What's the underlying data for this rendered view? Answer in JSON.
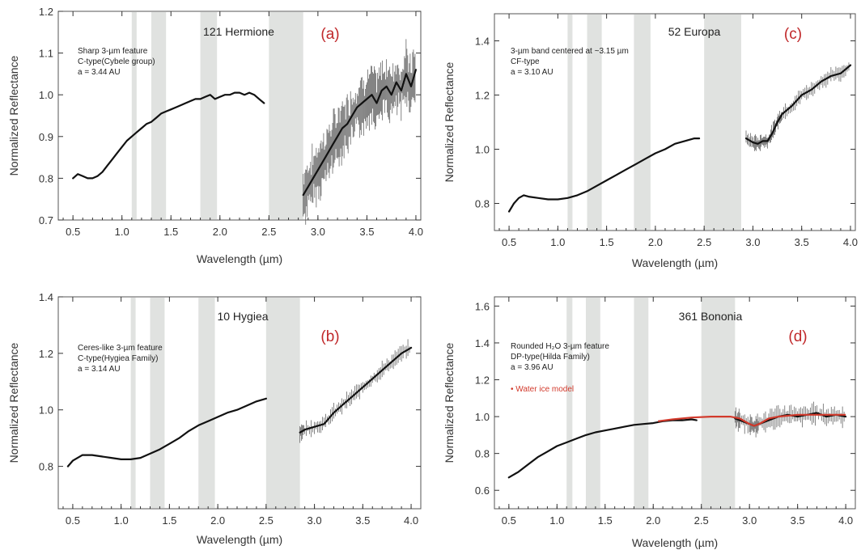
{
  "chart_data": [
    {
      "id": "a",
      "type": "scatter",
      "panel_label": "(a)",
      "object": "121 Hermione",
      "annotations": [
        "Sharp 3-µm feature",
        "C-type(Cybele group)",
        "a = 3.44 AU"
      ],
      "xlabel": "Wavelength (µm)",
      "ylabel": "Normalized Reflectance",
      "xlim": [
        0.35,
        4.05
      ],
      "ylim": [
        0.7,
        1.2
      ],
      "xticks": [
        "0.5",
        "1.0",
        "1.5",
        "2.0",
        "2.5",
        "3.0",
        "3.5",
        "4.0"
      ],
      "yticks": [
        "0.7",
        "0.8",
        "0.9",
        "1.0",
        "1.1",
        "1.2"
      ],
      "ytick_values": [
        0.7,
        0.8,
        0.9,
        1.0,
        1.1,
        1.2
      ],
      "bands": [
        [
          1.1,
          1.15
        ],
        [
          1.3,
          1.45
        ],
        [
          1.8,
          1.97
        ],
        [
          2.5,
          2.85
        ]
      ],
      "series": [
        {
          "x": [
            0.5,
            0.55,
            0.6,
            0.65,
            0.7,
            0.75,
            0.8,
            0.85,
            0.9,
            0.95,
            1.0,
            1.05,
            1.1,
            1.15,
            1.2,
            1.25,
            1.3,
            1.35,
            1.4,
            1.45,
            1.5,
            1.55,
            1.6,
            1.65,
            1.7,
            1.75,
            1.8,
            1.85,
            1.9,
            1.95,
            2.0,
            2.05,
            2.1,
            2.15,
            2.2,
            2.25,
            2.3,
            2.35,
            2.4,
            2.45
          ],
          "y": [
            0.8,
            0.81,
            0.805,
            0.8,
            0.8,
            0.805,
            0.815,
            0.83,
            0.845,
            0.86,
            0.875,
            0.89,
            0.9,
            0.91,
            0.92,
            0.93,
            0.935,
            0.945,
            0.955,
            0.96,
            0.965,
            0.97,
            0.975,
            0.98,
            0.985,
            0.99,
            0.99,
            0.995,
            1.0,
            0.99,
            0.995,
            1.0,
            1.0,
            1.005,
            1.005,
            1.0,
            1.005,
            1.0,
            0.99,
            0.98
          ]
        },
        {
          "x": [
            2.85,
            2.9,
            2.95,
            3.0,
            3.05,
            3.1,
            3.15,
            3.2,
            3.25,
            3.3,
            3.35,
            3.4,
            3.45,
            3.5,
            3.55,
            3.6,
            3.65,
            3.7,
            3.75,
            3.8,
            3.85,
            3.9,
            3.95,
            4.0
          ],
          "y": [
            0.76,
            0.78,
            0.8,
            0.82,
            0.84,
            0.86,
            0.88,
            0.9,
            0.92,
            0.93,
            0.95,
            0.97,
            0.98,
            0.99,
            1.0,
            0.98,
            1.01,
            1.02,
            1.0,
            1.03,
            1.01,
            1.05,
            1.02,
            1.06
          ]
        }
      ]
    },
    {
      "id": "c",
      "type": "scatter",
      "panel_label": "(c)",
      "object": "52 Europa",
      "annotations": [
        "3-µm band centered at ~3.15 µm",
        "CF-type",
        "a = 3.10 AU"
      ],
      "xlabel": "Wavelength (µm)",
      "ylabel": "Normalized Reflectance",
      "xlim": [
        0.35,
        4.05
      ],
      "ylim": [
        0.7,
        1.5
      ],
      "xticks": [
        "0.5",
        "1.0",
        "1.5",
        "2.0",
        "2.5",
        "3.0",
        "3.5",
        "4.0"
      ],
      "yticks": [
        "0.8",
        "1.0",
        "1.2",
        "1.4"
      ],
      "ytick_values": [
        0.8,
        1.0,
        1.2,
        1.4
      ],
      "bands": [
        [
          1.1,
          1.15
        ],
        [
          1.3,
          1.45
        ],
        [
          1.78,
          1.95
        ],
        [
          2.5,
          2.88
        ]
      ],
      "series": [
        {
          "x": [
            0.5,
            0.55,
            0.6,
            0.65,
            0.7,
            0.8,
            0.9,
            1.0,
            1.1,
            1.2,
            1.3,
            1.4,
            1.5,
            1.6,
            1.7,
            1.8,
            1.9,
            2.0,
            2.1,
            2.2,
            2.3,
            2.4,
            2.45
          ],
          "y": [
            0.77,
            0.8,
            0.82,
            0.83,
            0.825,
            0.82,
            0.815,
            0.815,
            0.82,
            0.83,
            0.845,
            0.865,
            0.885,
            0.905,
            0.925,
            0.945,
            0.965,
            0.985,
            1.0,
            1.02,
            1.03,
            1.04,
            1.04
          ]
        },
        {
          "x": [
            2.93,
            3.0,
            3.05,
            3.1,
            3.15,
            3.2,
            3.25,
            3.3,
            3.4,
            3.5,
            3.6,
            3.7,
            3.8,
            3.9,
            4.0
          ],
          "y": [
            1.04,
            1.025,
            1.02,
            1.03,
            1.03,
            1.06,
            1.1,
            1.13,
            1.16,
            1.2,
            1.22,
            1.25,
            1.27,
            1.28,
            1.31
          ]
        }
      ]
    },
    {
      "id": "b",
      "type": "scatter",
      "panel_label": "(b)",
      "object": "10 Hygiea",
      "annotations": [
        "Ceres-like  3-µm feature",
        "C-type(Hygiea Family)",
        "a = 3.14 AU"
      ],
      "xlabel": "Wavelength (µm)",
      "ylabel": "Normalized Reflectance",
      "xlim": [
        0.35,
        4.1
      ],
      "ylim": [
        0.65,
        1.4
      ],
      "xticks": [
        "0.5",
        "1.0",
        "1.5",
        "2.0",
        "2.5",
        "3.0",
        "3.5",
        "4.0"
      ],
      "yticks": [
        "0.8",
        "1.0",
        "1.2",
        "1.4"
      ],
      "ytick_values": [
        0.8,
        1.0,
        1.2,
        1.4
      ],
      "bands": [
        [
          1.1,
          1.15
        ],
        [
          1.3,
          1.45
        ],
        [
          1.8,
          1.97
        ],
        [
          2.5,
          2.85
        ]
      ],
      "series": [
        {
          "x": [
            0.45,
            0.5,
            0.6,
            0.7,
            0.8,
            0.9,
            1.0,
            1.1,
            1.2,
            1.3,
            1.4,
            1.5,
            1.6,
            1.7,
            1.8,
            1.9,
            2.0,
            2.1,
            2.2,
            2.3,
            2.4,
            2.5
          ],
          "y": [
            0.8,
            0.82,
            0.84,
            0.84,
            0.835,
            0.83,
            0.825,
            0.825,
            0.83,
            0.845,
            0.86,
            0.88,
            0.9,
            0.925,
            0.945,
            0.96,
            0.975,
            0.99,
            1.0,
            1.015,
            1.03,
            1.04
          ]
        },
        {
          "x": [
            2.85,
            2.9,
            3.0,
            3.1,
            3.2,
            3.3,
            3.4,
            3.5,
            3.6,
            3.7,
            3.8,
            3.9,
            4.0
          ],
          "y": [
            0.92,
            0.93,
            0.94,
            0.95,
            0.99,
            1.02,
            1.05,
            1.08,
            1.11,
            1.14,
            1.17,
            1.2,
            1.22
          ]
        }
      ]
    },
    {
      "id": "d",
      "type": "scatter",
      "panel_label": "(d)",
      "object": "361 Bononia",
      "annotations": [
        "Rounded H₂O 3-µm feature",
        "DP-type(Hilda Family)",
        "a = 3.96 AU"
      ],
      "legend": "• Water ice model",
      "xlabel": "Wavelength (µm)",
      "ylabel": "Normalized Reflectance",
      "xlim": [
        0.35,
        4.1
      ],
      "ylim": [
        0.5,
        1.65
      ],
      "xticks": [
        "0.5",
        "1.0",
        "1.5",
        "2.0",
        "2.5",
        "3.0",
        "3.5",
        "4.0"
      ],
      "yticks": [
        "0.6",
        "0.8",
        "1.0",
        "1.2",
        "1.4",
        "1.6"
      ],
      "ytick_values": [
        0.6,
        0.8,
        1.0,
        1.2,
        1.4,
        1.6
      ],
      "bands": [
        [
          1.1,
          1.16
        ],
        [
          1.3,
          1.45
        ],
        [
          1.8,
          1.95
        ],
        [
          2.5,
          2.85
        ]
      ],
      "series": [
        {
          "x": [
            0.5,
            0.6,
            0.7,
            0.8,
            0.9,
            1.0,
            1.1,
            1.2,
            1.3,
            1.4,
            1.5,
            1.6,
            1.7,
            1.8,
            1.9,
            2.0,
            2.1,
            2.2,
            2.3,
            2.4,
            2.45
          ],
          "y": [
            0.67,
            0.7,
            0.74,
            0.78,
            0.81,
            0.84,
            0.86,
            0.88,
            0.9,
            0.915,
            0.925,
            0.935,
            0.945,
            0.955,
            0.96,
            0.965,
            0.975,
            0.98,
            0.98,
            0.985,
            0.98
          ]
        },
        {
          "x": [
            2.85,
            2.9,
            3.0,
            3.05,
            3.1,
            3.2,
            3.3,
            3.4,
            3.5,
            3.6,
            3.7,
            3.8,
            3.9,
            4.0
          ],
          "y": [
            0.99,
            0.98,
            0.96,
            0.95,
            0.96,
            0.98,
            1.0,
            1.01,
            1.0,
            1.01,
            1.02,
            1.0,
            1.01,
            1.0
          ]
        }
      ],
      "model": {
        "x": [
          2.05,
          2.2,
          2.4,
          2.6,
          2.8,
          2.9,
          3.0,
          3.05,
          3.1,
          3.2,
          3.3,
          3.5,
          3.7,
          4.0
        ],
        "y": [
          0.975,
          0.985,
          0.995,
          1.0,
          1.0,
          0.99,
          0.96,
          0.95,
          0.96,
          0.99,
          1.0,
          1.01,
          1.01,
          1.01
        ]
      }
    }
  ]
}
